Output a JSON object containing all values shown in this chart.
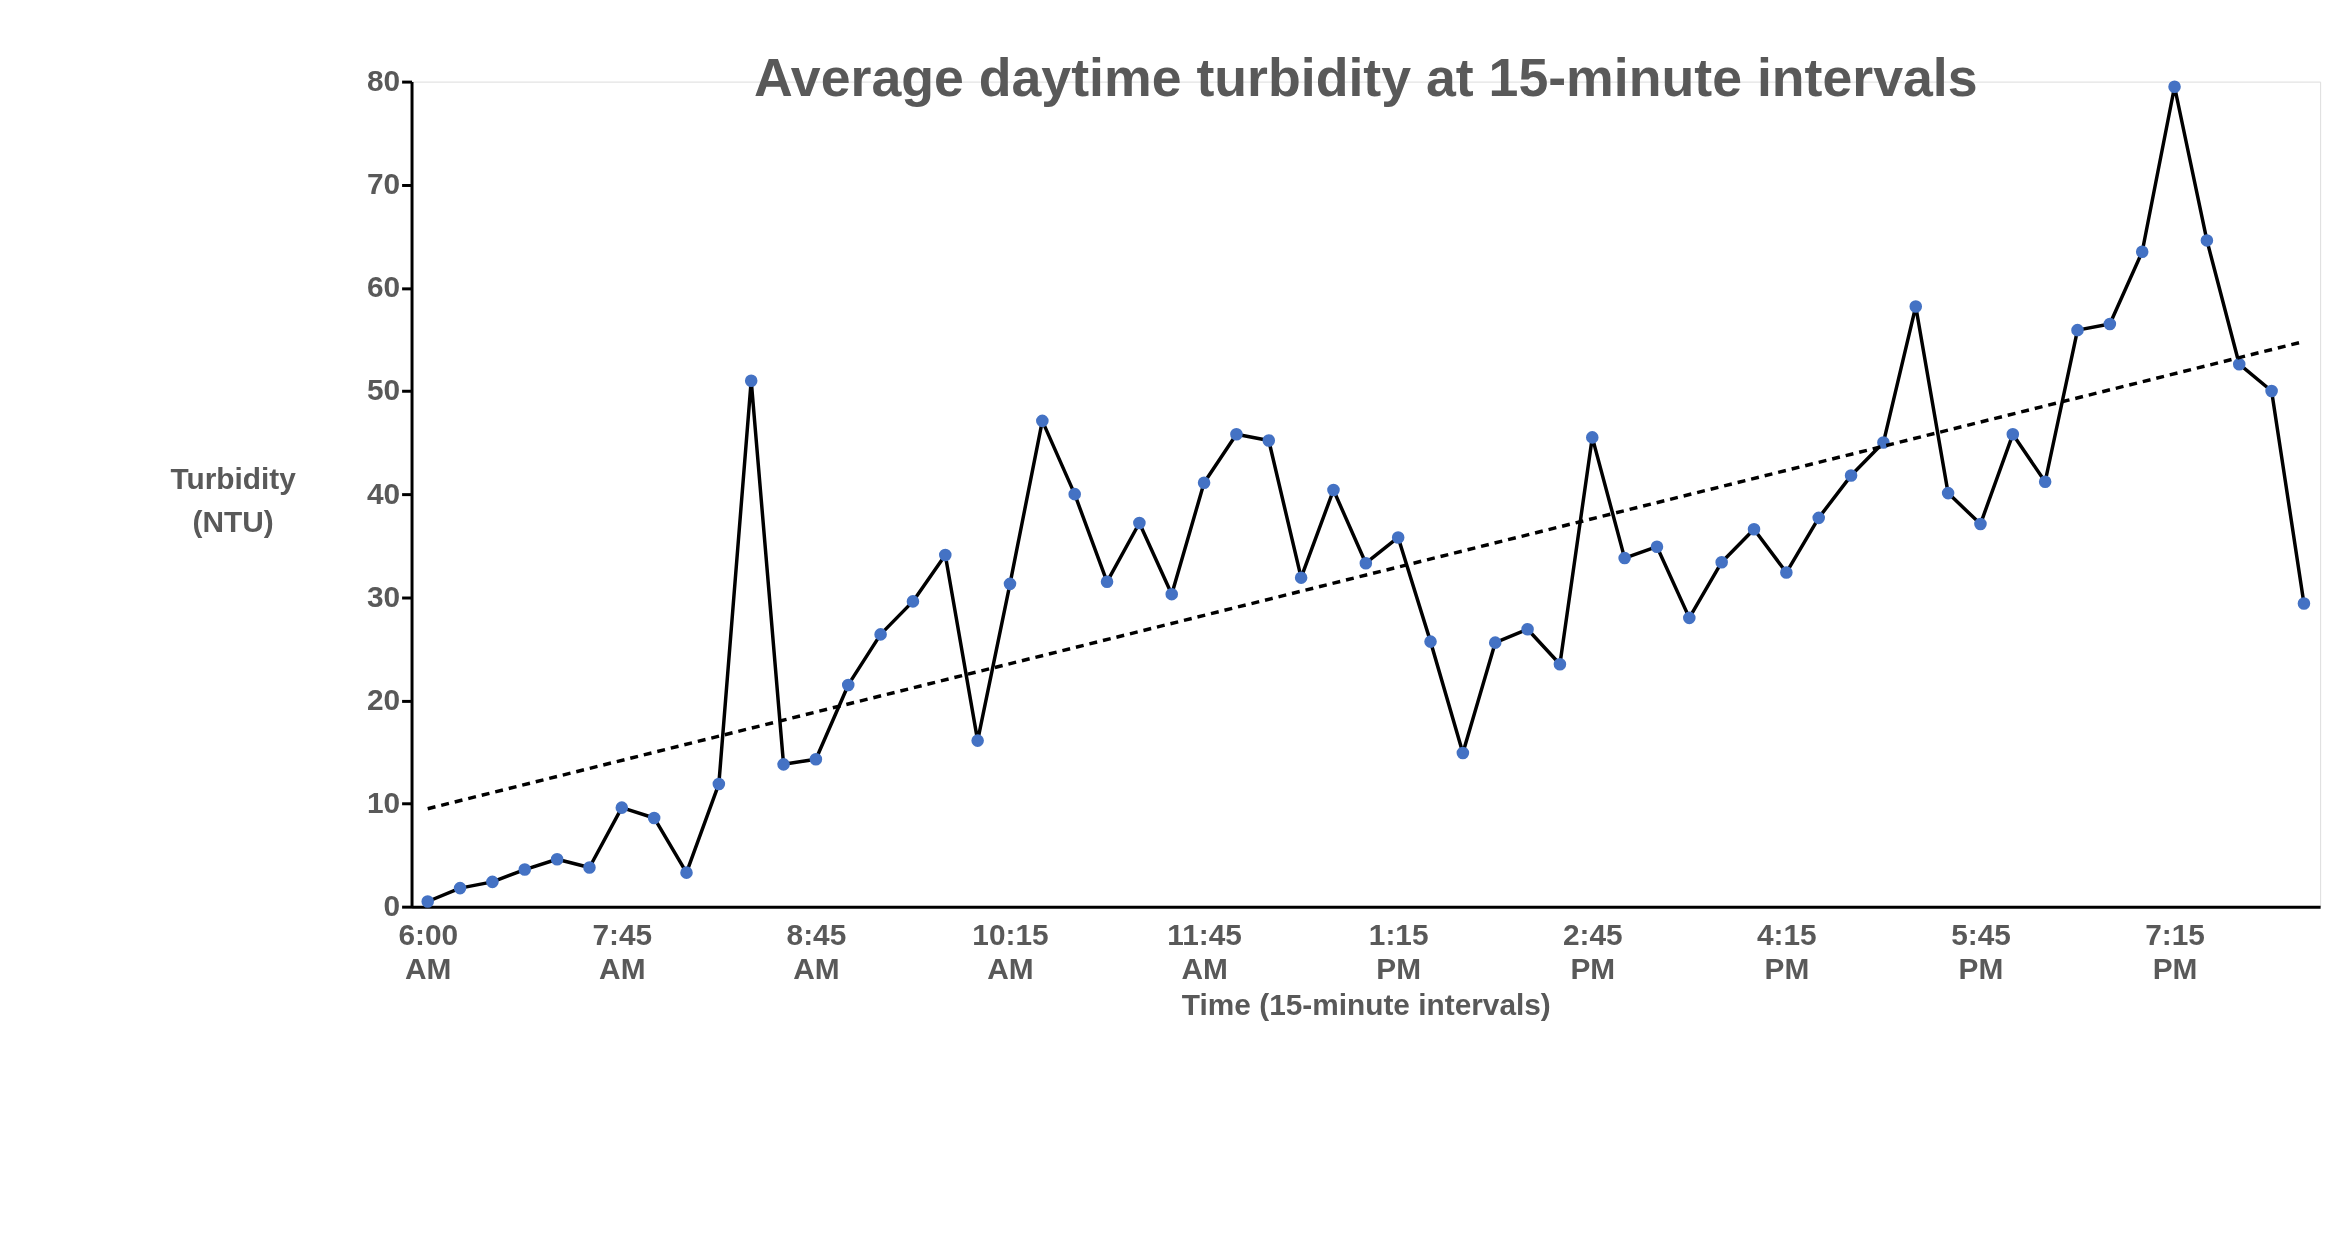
{
  "chart_data": {
    "type": "line",
    "title": "Average daytime turbidity at 15-minute intervals",
    "xlabel": "Time (15-minute intervals)",
    "ylabel": "Turbidity (NTU)",
    "categories": [
      "6:00 AM",
      null,
      null,
      null,
      null,
      null,
      "7:45 AM",
      null,
      null,
      null,
      null,
      null,
      "8:45 AM",
      null,
      null,
      null,
      null,
      null,
      "10:15 AM",
      null,
      null,
      null,
      null,
      null,
      "11:45 AM",
      null,
      null,
      null,
      null,
      null,
      "1:15 PM",
      null,
      null,
      null,
      null,
      null,
      "2:45 PM",
      null,
      null,
      null,
      null,
      null,
      "4:15 PM",
      null,
      null,
      null,
      null,
      null,
      "5:45 PM",
      null,
      null,
      null,
      null,
      null,
      "7:15 PM",
      null,
      null,
      null,
      null
    ],
    "series": [
      {
        "color": "#4472c4",
        "marker": "circle",
        "line_style": "solid",
        "values": [
          0.5,
          1.8,
          2.4,
          3.6,
          4.6,
          3.8,
          9.6,
          8.6,
          3.3,
          11.9,
          51,
          13.8,
          14.3,
          21.5,
          26.4,
          29.6,
          34.1,
          16.1,
          31.3,
          47.1,
          40,
          31.5,
          37.2,
          30.3,
          41.1,
          45.8,
          45.2,
          31.9,
          40.4,
          33.3,
          35.8,
          25.7,
          14.9,
          25.6,
          26.9,
          23.5,
          45.5,
          33.8,
          34.9,
          28,
          33.4,
          36.6,
          32.4,
          37.7,
          41.8,
          45,
          58.2,
          40.1,
          37.1,
          45.8,
          41.2,
          55.9,
          56.5,
          63.5,
          79.5,
          64.6,
          52.6,
          50,
          29.4
        ]
      },
      {
        "color": "#000000",
        "marker": "none",
        "line_style": "dashed",
        "values": [
          9.5,
          null,
          null,
          null,
          null,
          null,
          null,
          null,
          null,
          null,
          null,
          null,
          null,
          null,
          null,
          null,
          null,
          null,
          null,
          null,
          null,
          null,
          null,
          null,
          null,
          null,
          null,
          null,
          null,
          null,
          null,
          null,
          null,
          null,
          null,
          null,
          null,
          null,
          null,
          null,
          null,
          null,
          null,
          null,
          null,
          null,
          null,
          null,
          null,
          null,
          null,
          null,
          null,
          null,
          null,
          null,
          null,
          null,
          54.8
        ]
      }
    ],
    "ylim": [
      0,
      80
    ],
    "yticks": [
      0,
      10,
      20,
      30,
      40,
      50,
      60,
      70,
      80
    ],
    "grid": false
  }
}
